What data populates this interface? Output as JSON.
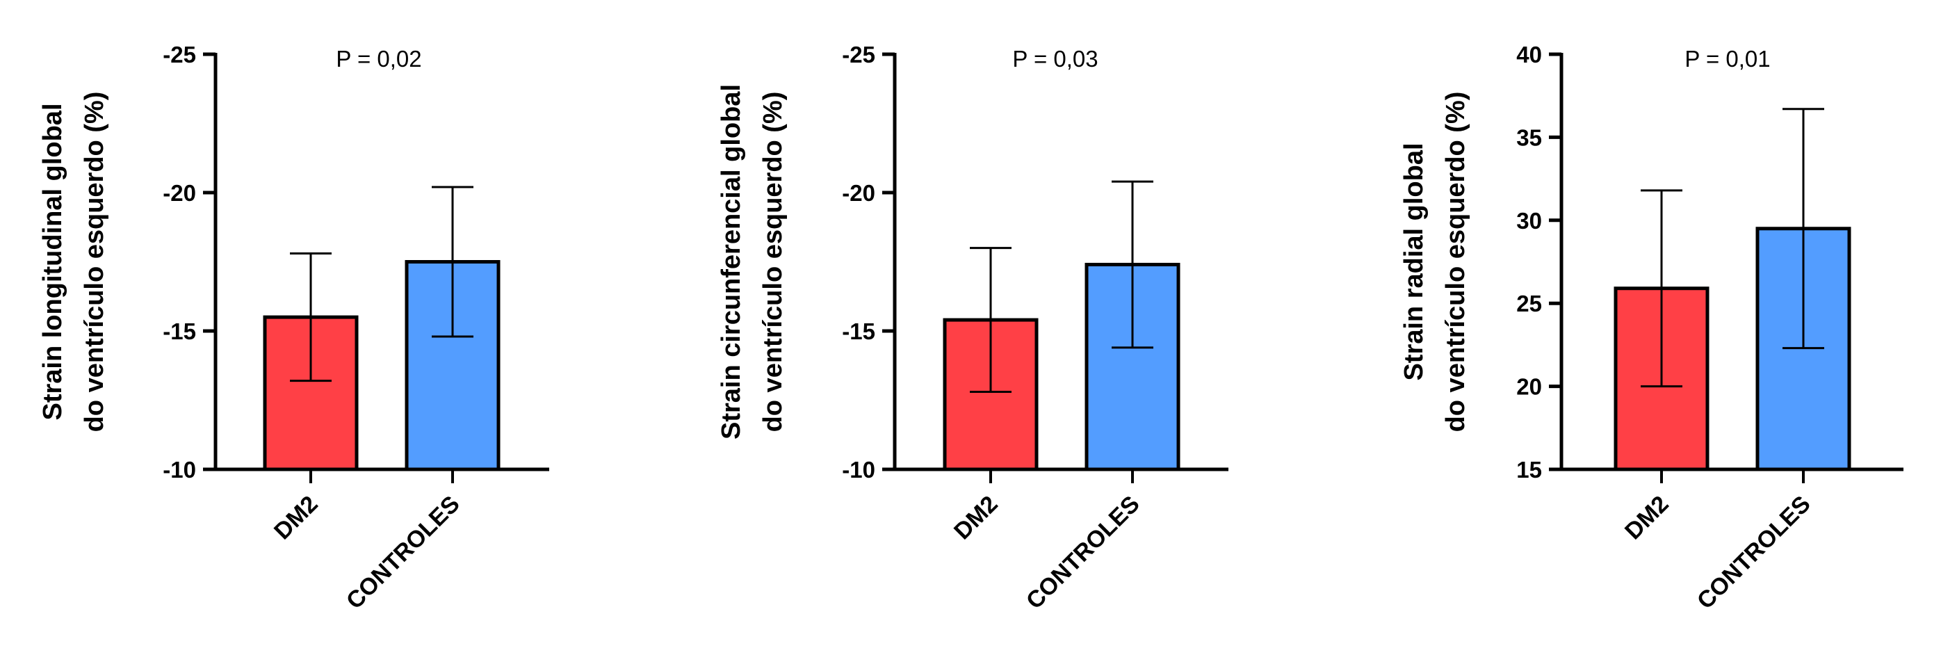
{
  "chart_data": [
    {
      "type": "bar",
      "title": "",
      "ylabel_lines": [
        "Strain longitudinal global",
        "do ventrículo esquerdo (%)"
      ],
      "annotation": "P = 0,02",
      "categories": [
        "DM2",
        "CONTROLES"
      ],
      "values": [
        -15.5,
        -17.5
      ],
      "errors": [
        2.3,
        2.7
      ],
      "ylim": [
        -10,
        -25
      ],
      "yticks": [
        -25,
        -20,
        -15,
        -10
      ],
      "ytick_labels": [
        "-25",
        "-20",
        "-15",
        "-10"
      ],
      "colors": [
        "#ff4046",
        "#539dff"
      ]
    },
    {
      "type": "bar",
      "title": "",
      "ylabel_lines": [
        "Strain circunferencial global",
        "do ventrículo esquerdo (%)"
      ],
      "annotation": "P = 0,03",
      "categories": [
        "DM2",
        "CONTROLES"
      ],
      "values": [
        -15.4,
        -17.4
      ],
      "errors": [
        2.6,
        3.0
      ],
      "ylim": [
        -10,
        -25
      ],
      "yticks": [
        -25,
        -20,
        -15,
        -10
      ],
      "ytick_labels": [
        "-25",
        "-20",
        "-15",
        "-10"
      ],
      "colors": [
        "#ff4046",
        "#539dff"
      ]
    },
    {
      "type": "bar",
      "title": "",
      "ylabel_lines": [
        "Strain radial global",
        "do ventrículo esquerdo (%)"
      ],
      "annotation": "P = 0,01",
      "categories": [
        "DM2",
        "CONTROLES"
      ],
      "values": [
        25.9,
        29.5
      ],
      "errors": [
        5.9,
        7.2
      ],
      "ylim": [
        15,
        40
      ],
      "yticks": [
        15,
        20,
        25,
        30,
        35,
        40
      ],
      "ytick_labels": [
        "15",
        "20",
        "25",
        "30",
        "35",
        "40"
      ],
      "colors": [
        "#ff4046",
        "#539dff"
      ]
    }
  ]
}
